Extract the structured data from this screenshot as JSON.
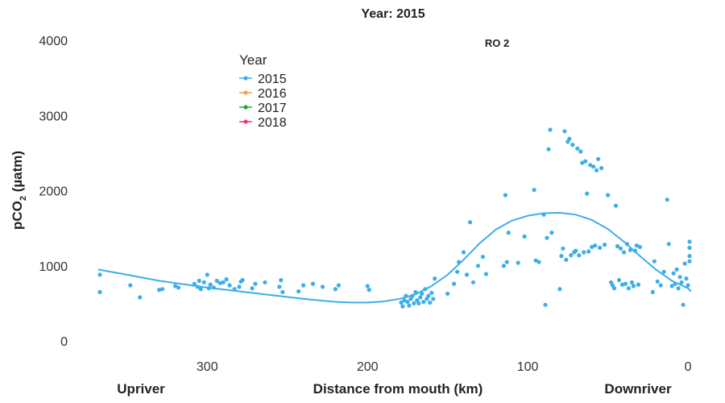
{
  "chart_data": {
    "type": "scatter",
    "title": "Year: 2015",
    "subtitle": "RO 2",
    "xlabel": "Distance from mouth (km)",
    "ylabel": "pCO2 (µatm)",
    "ylabel_main": "pCO",
    "ylabel_sub": "2",
    "ylabel_unit": " (µatm)",
    "x_reversed": true,
    "xlim": [
      368,
      -3
    ],
    "ylim": [
      -50,
      4100
    ],
    "x_ticks": [
      300,
      200,
      100,
      0
    ],
    "y_ticks": [
      0,
      1000,
      2000,
      3000,
      4000
    ],
    "direction_labels": {
      "left": "Upriver",
      "right": "Downriver"
    },
    "grid": false,
    "legend": {
      "title": "Year",
      "position": "top-left",
      "entries": [
        {
          "label": "2015",
          "color": "#3daee9"
        },
        {
          "label": "2016",
          "color": "#f39c4a"
        },
        {
          "label": "2017",
          "color": "#1aaa3c"
        },
        {
          "label": "2018",
          "color": "#e8337a"
        }
      ]
    },
    "series": [
      {
        "name": "2015",
        "color": "#3daee9",
        "points": [
          [
            367,
            650
          ],
          [
            367,
            880
          ],
          [
            348,
            740
          ],
          [
            342,
            580
          ],
          [
            330,
            680
          ],
          [
            328,
            690
          ],
          [
            320,
            730
          ],
          [
            318,
            710
          ],
          [
            308,
            760
          ],
          [
            306,
            720
          ],
          [
            305,
            800
          ],
          [
            304,
            690
          ],
          [
            302,
            780
          ],
          [
            300,
            880
          ],
          [
            299,
            700
          ],
          [
            298,
            750
          ],
          [
            296,
            710
          ],
          [
            294,
            800
          ],
          [
            292,
            770
          ],
          [
            290,
            780
          ],
          [
            288,
            820
          ],
          [
            286,
            740
          ],
          [
            283,
            690
          ],
          [
            280,
            720
          ],
          [
            279,
            790
          ],
          [
            278,
            810
          ],
          [
            272,
            700
          ],
          [
            270,
            760
          ],
          [
            264,
            780
          ],
          [
            255,
            720
          ],
          [
            254,
            810
          ],
          [
            253,
            650
          ],
          [
            243,
            660
          ],
          [
            240,
            740
          ],
          [
            234,
            760
          ],
          [
            228,
            720
          ],
          [
            220,
            690
          ],
          [
            218,
            740
          ],
          [
            200,
            730
          ],
          [
            199,
            680
          ],
          [
            179,
            510
          ],
          [
            178,
            460
          ],
          [
            177,
            540
          ],
          [
            176,
            600
          ],
          [
            175,
            520
          ],
          [
            174,
            470
          ],
          [
            173,
            560
          ],
          [
            172,
            600
          ],
          [
            171,
            500
          ],
          [
            170,
            650
          ],
          [
            169,
            540
          ],
          [
            168,
            500
          ],
          [
            167,
            580
          ],
          [
            166,
            630
          ],
          [
            165,
            520
          ],
          [
            164,
            690
          ],
          [
            163,
            560
          ],
          [
            162,
            600
          ],
          [
            161,
            510
          ],
          [
            160,
            640
          ],
          [
            159,
            560
          ],
          [
            158,
            830
          ],
          [
            150,
            630
          ],
          [
            146,
            760
          ],
          [
            144,
            920
          ],
          [
            143,
            1050
          ],
          [
            140,
            1180
          ],
          [
            138,
            880
          ],
          [
            136,
            1580
          ],
          [
            134,
            780
          ],
          [
            131,
            1000
          ],
          [
            128,
            1120
          ],
          [
            126,
            890
          ],
          [
            115,
            1000
          ],
          [
            114,
            1940
          ],
          [
            113,
            1050
          ],
          [
            112,
            1440
          ],
          [
            106,
            1040
          ],
          [
            102,
            1390
          ],
          [
            96,
            2010
          ],
          [
            95,
            1070
          ],
          [
            93,
            1050
          ],
          [
            90,
            1680
          ],
          [
            89,
            480
          ],
          [
            88,
            1370
          ],
          [
            87,
            2550
          ],
          [
            86,
            2810
          ],
          [
            85,
            1440
          ],
          [
            80,
            690
          ],
          [
            79,
            1130
          ],
          [
            78,
            1230
          ],
          [
            77,
            2790
          ],
          [
            76,
            1080
          ],
          [
            75,
            2650
          ],
          [
            74,
            2690
          ],
          [
            73,
            1140
          ],
          [
            72,
            2610
          ],
          [
            71,
            1180
          ],
          [
            70,
            1200
          ],
          [
            69,
            2560
          ],
          [
            68,
            1140
          ],
          [
            67,
            2520
          ],
          [
            66,
            2370
          ],
          [
            65,
            1180
          ],
          [
            64,
            2390
          ],
          [
            63,
            1960
          ],
          [
            62,
            1190
          ],
          [
            61,
            2340
          ],
          [
            60,
            1250
          ],
          [
            59,
            2320
          ],
          [
            58,
            1270
          ],
          [
            57,
            2270
          ],
          [
            56,
            2420
          ],
          [
            55,
            1240
          ],
          [
            54,
            2300
          ],
          [
            52,
            1280
          ],
          [
            50,
            1940
          ],
          [
            48,
            780
          ],
          [
            47,
            740
          ],
          [
            46,
            700
          ],
          [
            45,
            1800
          ],
          [
            44,
            1260
          ],
          [
            43,
            810
          ],
          [
            42,
            1230
          ],
          [
            41,
            750
          ],
          [
            40,
            1180
          ],
          [
            39,
            760
          ],
          [
            38,
            1290
          ],
          [
            37,
            700
          ],
          [
            36,
            1210
          ],
          [
            35,
            780
          ],
          [
            34,
            730
          ],
          [
            33,
            1200
          ],
          [
            32,
            1270
          ],
          [
            31,
            750
          ],
          [
            30,
            1250
          ],
          [
            22,
            650
          ],
          [
            21,
            1060
          ],
          [
            19,
            790
          ],
          [
            17,
            740
          ],
          [
            15,
            920
          ],
          [
            13,
            1880
          ],
          [
            12,
            1290
          ],
          [
            10,
            730
          ],
          [
            9,
            900
          ],
          [
            8,
            760
          ],
          [
            7,
            950
          ],
          [
            6,
            700
          ],
          [
            5,
            850
          ],
          [
            4,
            780
          ],
          [
            3,
            480
          ],
          [
            2,
            1030
          ],
          [
            1,
            830
          ],
          [
            0,
            740
          ],
          [
            -1,
            1320
          ],
          [
            -1,
            1130
          ],
          [
            -1,
            1240
          ],
          [
            -1,
            1060
          ]
        ]
      }
    ],
    "smooth": {
      "name": "2015 loess",
      "color": "#3daee9",
      "points": [
        [
          368,
          950
        ],
        [
          350,
          880
        ],
        [
          330,
          800
        ],
        [
          310,
          740
        ],
        [
          300,
          710
        ],
        [
          280,
          660
        ],
        [
          260,
          610
        ],
        [
          240,
          560
        ],
        [
          220,
          520
        ],
        [
          210,
          510
        ],
        [
          200,
          510
        ],
        [
          190,
          525
        ],
        [
          180,
          560
        ],
        [
          170,
          620
        ],
        [
          160,
          730
        ],
        [
          150,
          880
        ],
        [
          140,
          1080
        ],
        [
          130,
          1300
        ],
        [
          120,
          1480
        ],
        [
          110,
          1600
        ],
        [
          100,
          1665
        ],
        [
          90,
          1700
        ],
        [
          80,
          1705
        ],
        [
          70,
          1680
        ],
        [
          60,
          1610
        ],
        [
          50,
          1490
        ],
        [
          40,
          1320
        ],
        [
          30,
          1130
        ],
        [
          20,
          950
        ],
        [
          10,
          800
        ],
        [
          0,
          700
        ],
        [
          -2,
          660
        ]
      ]
    }
  }
}
